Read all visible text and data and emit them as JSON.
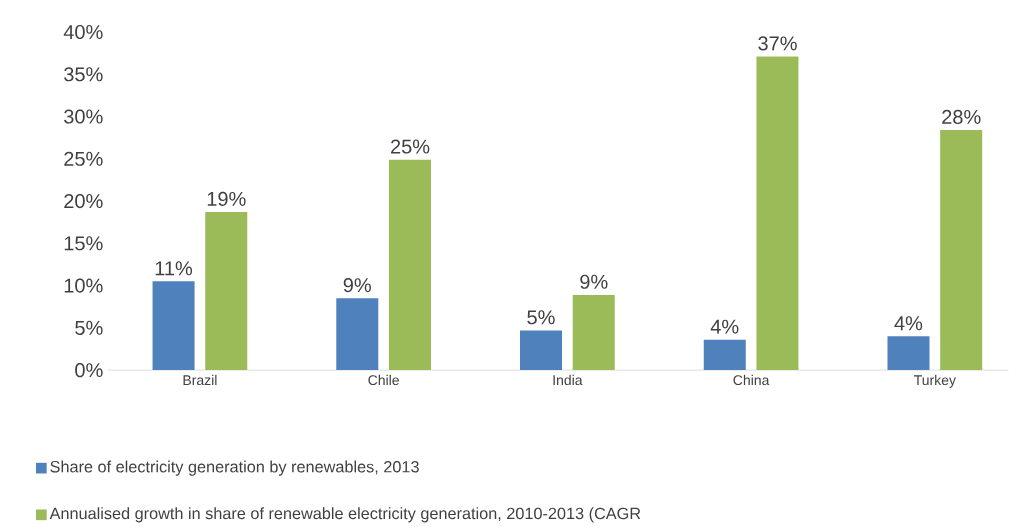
{
  "chart_data": {
    "type": "bar",
    "categories": [
      "Brazil",
      "Chile",
      "India",
      "China",
      "Turkey"
    ],
    "series": [
      {
        "name": "Share of electricity generation by renewables, 2013",
        "color": "#4f81bd",
        "values": [
          10.5,
          8.5,
          4.7,
          3.6,
          4.0
        ],
        "value_labels": [
          "11%",
          "9%",
          "5%",
          "4%",
          "4%"
        ]
      },
      {
        "name": "Annualised growth in share of renewable electricity generation, 2010-2013 (CAGR",
        "color": "#9bbb59",
        "values": [
          18.7,
          24.9,
          8.9,
          37.1,
          28.4
        ],
        "value_labels": [
          "19%",
          "25%",
          "9%",
          "37%",
          "28%"
        ]
      }
    ],
    "ylim": [
      0,
      40
    ],
    "yticks": [
      {
        "value": 0,
        "label": "0%"
      },
      {
        "value": 5,
        "label": "5%"
      },
      {
        "value": 10,
        "label": "10%"
      },
      {
        "value": 15,
        "label": "15%"
      },
      {
        "value": 20,
        "label": "20%"
      },
      {
        "value": 25,
        "label": "25%"
      },
      {
        "value": 30,
        "label": "30%"
      },
      {
        "value": 35,
        "label": "35%"
      },
      {
        "value": 40,
        "label": "40%"
      }
    ],
    "legend": "bottom"
  }
}
